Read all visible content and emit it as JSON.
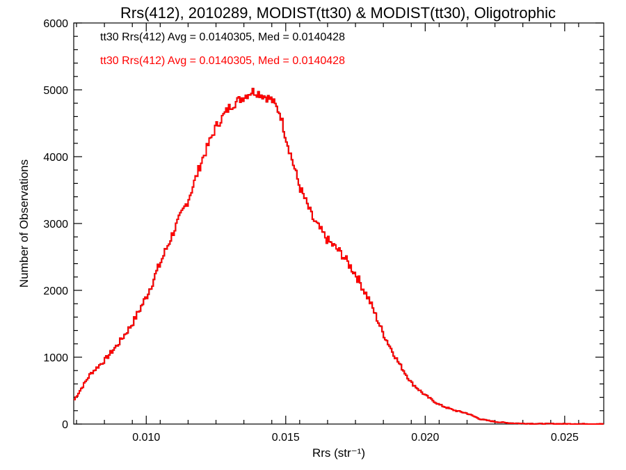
{
  "chart_data": {
    "type": "line",
    "title": "Rrs(412), 2010289, MODIST(tt30) & MODIST(tt30), Oligotrophic",
    "xlabel": "Rrs (str⁻¹)",
    "ylabel": "Number of Observations",
    "xlim": [
      0.0074,
      0.0264
    ],
    "ylim": [
      0,
      6000
    ],
    "xticks": [
      0.01,
      0.015,
      0.02,
      0.025
    ],
    "xtick_labels": [
      "0.010",
      "0.015",
      "0.020",
      "0.025"
    ],
    "yticks": [
      0,
      1000,
      2000,
      3000,
      4000,
      5000,
      6000
    ],
    "ytick_labels": [
      "0",
      "1000",
      "2000",
      "3000",
      "4000",
      "5000",
      "6000"
    ],
    "legend": [
      {
        "text": "tt30 Rrs(412) Avg = 0.0140305, Med = 0.0140428",
        "color": "#000000"
      },
      {
        "text": "tt30 Rrs(412) Avg = 0.0140305, Med = 0.0140428",
        "color": "#ff0000"
      }
    ],
    "series": [
      {
        "color": "#000000"
      },
      {
        "color": "#ff0000"
      }
    ],
    "keypoints": {
      "x": [
        0.0074,
        0.008,
        0.0085,
        0.009,
        0.0095,
        0.01,
        0.0105,
        0.011,
        0.0115,
        0.012,
        0.0125,
        0.013,
        0.0135,
        0.0138,
        0.014,
        0.0145,
        0.0148,
        0.015,
        0.0155,
        0.016,
        0.0165,
        0.017,
        0.0175,
        0.018,
        0.0185,
        0.019,
        0.0195,
        0.02,
        0.0205,
        0.021,
        0.0215,
        0.022,
        0.0225,
        0.023,
        0.0235,
        0.024,
        0.025,
        0.0264
      ],
      "y": [
        350,
        750,
        950,
        1200,
        1500,
        1900,
        2400,
        2900,
        3350,
        3950,
        4450,
        4750,
        4900,
        4980,
        4960,
        4850,
        4650,
        4300,
        3550,
        3050,
        2750,
        2550,
        2250,
        1850,
        1350,
        950,
        620,
        430,
        290,
        210,
        160,
        70,
        35,
        15,
        8,
        5,
        3,
        2
      ]
    }
  }
}
